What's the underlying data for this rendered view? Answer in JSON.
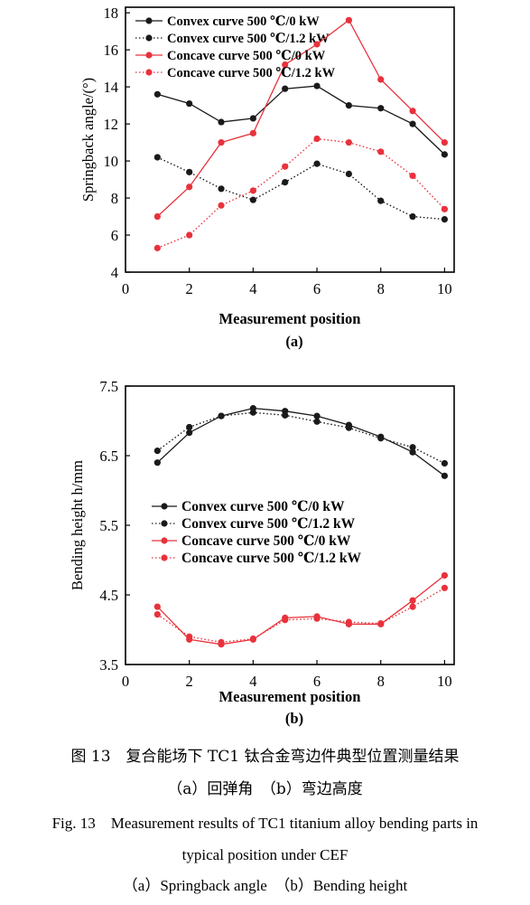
{
  "chart_data": [
    {
      "type": "line",
      "panel_label": "(a)",
      "xlabel": "Measurement position",
      "ylabel": "Springback angle/(°)",
      "x": [
        1,
        2,
        3,
        4,
        5,
        6,
        7,
        8,
        9,
        10
      ],
      "xlim": [
        0,
        10.3
      ],
      "ylim": [
        4,
        18.3
      ],
      "xticks": [
        0,
        2,
        4,
        6,
        8,
        10
      ],
      "yticks": [
        4,
        6,
        8,
        10,
        12,
        14,
        16,
        18
      ],
      "legend_position": "top-left",
      "series": [
        {
          "name": "Convex curve 500 ℃/0 kW",
          "color": "#1a1a1a",
          "dash": "solid",
          "values": [
            13.6,
            13.1,
            12.1,
            12.3,
            13.9,
            14.05,
            13.0,
            12.85,
            12.0,
            10.35
          ]
        },
        {
          "name": "Convex curve 500 ℃/1.2 kW",
          "color": "#1a1a1a",
          "dash": "dotted",
          "values": [
            10.2,
            9.4,
            8.5,
            7.9,
            8.85,
            9.85,
            9.3,
            7.85,
            7.0,
            6.85
          ]
        },
        {
          "name": "Concave curve 500 ℃/0 kW",
          "color": "#e8323c",
          "dash": "solid",
          "values": [
            7.0,
            8.6,
            11.0,
            11.5,
            15.2,
            16.3,
            17.6,
            14.4,
            12.7,
            11.0
          ]
        },
        {
          "name": "Concave curve 500 ℃/1.2 kW",
          "color": "#e8323c",
          "dash": "dotted",
          "values": [
            5.3,
            6.0,
            7.6,
            8.4,
            9.7,
            11.2,
            11.0,
            10.5,
            9.2,
            7.4
          ]
        }
      ]
    },
    {
      "type": "line",
      "panel_label": "(b)",
      "xlabel": "Measurement position",
      "ylabel": "Bending height h/mm",
      "x": [
        1,
        2,
        3,
        4,
        5,
        6,
        7,
        8,
        9,
        10
      ],
      "xlim": [
        0,
        10.3
      ],
      "ylim": [
        3.5,
        7.5
      ],
      "xticks": [
        0,
        2,
        4,
        6,
        8,
        10
      ],
      "yticks": [
        3.5,
        4.5,
        5.5,
        6.5,
        7.5
      ],
      "legend_position": "center-left",
      "series": [
        {
          "name": "Convex curve 500 ℃/0 kW",
          "color": "#1a1a1a",
          "dash": "solid",
          "values": [
            6.4,
            6.83,
            7.07,
            7.18,
            7.14,
            7.07,
            6.94,
            6.77,
            6.55,
            6.21
          ]
        },
        {
          "name": "Convex curve 500 ℃/1.2 kW",
          "color": "#1a1a1a",
          "dash": "dotted",
          "values": [
            6.57,
            6.91,
            7.07,
            7.12,
            7.08,
            6.99,
            6.9,
            6.75,
            6.62,
            6.39
          ]
        },
        {
          "name": "Concave curve 500 ℃/0 kW",
          "color": "#e8323c",
          "dash": "solid",
          "values": [
            4.33,
            3.86,
            3.79,
            3.86,
            4.17,
            4.19,
            4.08,
            4.08,
            4.42,
            4.78
          ]
        },
        {
          "name": "Concave curve 500 ℃/1.2 kW",
          "color": "#e8323c",
          "dash": "dotted",
          "values": [
            4.22,
            3.9,
            3.82,
            3.87,
            4.14,
            4.16,
            4.11,
            4.09,
            4.33,
            4.6
          ]
        }
      ]
    }
  ],
  "captions": {
    "zh_title": "图 13　复合能场下 TC1 钛合金弯边件典型位置测量结果",
    "zh_sub": "（a）回弹角　（b）弯边高度",
    "en_line1": "Fig. 13　Measurement results of TC1 titanium alloy bending parts in",
    "en_line2": "typical position under CEF",
    "en_sub": "（a）Springback angle　（b）Bending height"
  }
}
